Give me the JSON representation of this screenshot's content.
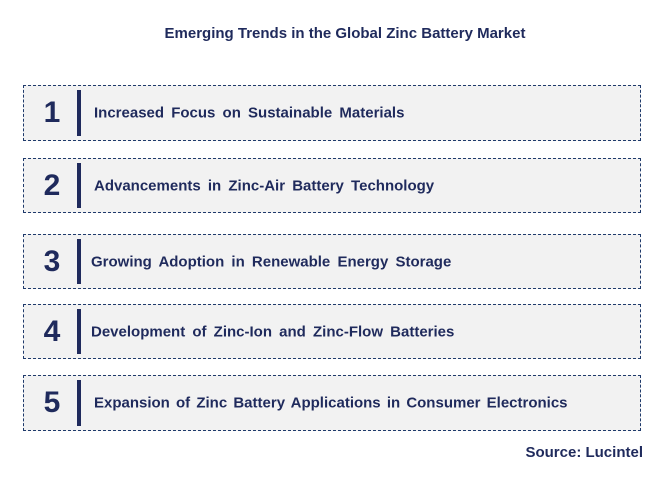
{
  "title": "Emerging Trends in the Global Zinc Battery Market",
  "trends": [
    {
      "number": "1",
      "label": "Increased Focus on Sustainable Materials"
    },
    {
      "number": "2",
      "label": "Advancements in Zinc-Air Battery Technology"
    },
    {
      "number": "3",
      "label": "Growing Adoption in Renewable Energy Storage"
    },
    {
      "number": "4",
      "label": "Development of Zinc-Ion and Zinc-Flow Batteries"
    },
    {
      "number": "5",
      "label": "Expansion of Zinc Battery Applications in Consumer Electronics"
    }
  ],
  "source": "Source: Lucintel",
  "colors": {
    "text": "#1f2a5c",
    "box_fill": "#f2f2f2",
    "box_border": "#1f3a6b"
  }
}
